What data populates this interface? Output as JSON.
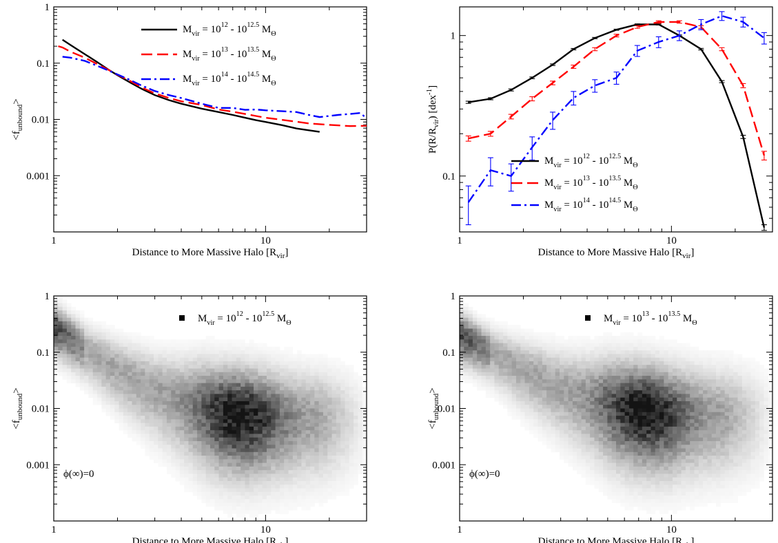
{
  "chart_data": [
    {
      "type": "line",
      "xlabel": "Distance to More Massive Halo [R",
      "xlabel_sub": "vir",
      "xlabel_end": "]",
      "ylabel": "<f",
      "ylabel_sub": "unbound",
      "ylabel_end": ">",
      "xscale": "log",
      "yscale": "log",
      "xlim": [
        1,
        30
      ],
      "ylim": [
        0.0001,
        1
      ],
      "xticks": [
        {
          "v": 1,
          "label": "1"
        },
        {
          "v": 10,
          "label": "10"
        }
      ],
      "yticks": [
        {
          "v": 1,
          "label": "1"
        },
        {
          "v": 0.1,
          "label": "0.1"
        },
        {
          "v": 0.01,
          "label": "0.01"
        },
        {
          "v": 0.001,
          "label": "0.001"
        }
      ],
      "legend_position": "top-right",
      "series": [
        {
          "name": "M_vir = 10^12 - 10^12.5 M_⊙",
          "m": "M",
          "msub": "vir",
          "t1": " = 10",
          "e1": "12",
          "t2": " - 10",
          "e2": "12.5",
          "t3": " M",
          "tsub": "Θ",
          "color": "#000000",
          "dash": "solid",
          "x": [
            1.1,
            1.2,
            1.4,
            1.6,
            1.8,
            2.0,
            2.3,
            2.6,
            3.0,
            3.5,
            4.0,
            5.0,
            6.0,
            7.0,
            8.0,
            9.0,
            10.0,
            12.0,
            14.0,
            16.0,
            18.0
          ],
          "y": [
            0.26,
            0.21,
            0.145,
            0.105,
            0.078,
            0.061,
            0.045,
            0.035,
            0.027,
            0.022,
            0.019,
            0.0155,
            0.0135,
            0.012,
            0.0107,
            0.0097,
            0.009,
            0.0079,
            0.0069,
            0.0064,
            0.006
          ]
        },
        {
          "name": "M_vir = 10^13 - 10^13.5 M_⊙",
          "m": "M",
          "msub": "vir",
          "t1": " = 10",
          "e1": "13",
          "t2": " - 10",
          "e2": "13.5",
          "t3": " M",
          "tsub": "Θ",
          "color": "#ff0000",
          "dash": "dashed",
          "x": [
            1.05,
            1.1,
            1.2,
            1.4,
            1.6,
            1.8,
            2.0,
            2.3,
            2.6,
            3.0,
            3.5,
            4.0,
            5.0,
            6.0,
            7.0,
            8.0,
            9.0,
            10.0,
            12.0,
            14.0,
            16.0,
            20.0,
            25.0,
            30.0
          ],
          "y": [
            0.2,
            0.19,
            0.16,
            0.125,
            0.097,
            0.077,
            0.062,
            0.048,
            0.037,
            0.029,
            0.024,
            0.021,
            0.018,
            0.015,
            0.0137,
            0.0125,
            0.0115,
            0.0107,
            0.0098,
            0.0091,
            0.0085,
            0.008,
            0.0076,
            0.0077
          ]
        },
        {
          "name": "M_vir = 10^14 - 10^14.5 M_⊙",
          "m": "M",
          "msub": "vir",
          "t1": " = 10",
          "e1": "14",
          "t2": " - 10",
          "e2": "14.5",
          "t3": " M",
          "tsub": "Θ",
          "color": "#0000ff",
          "dash": "dashdot",
          "x": [
            1.1,
            1.2,
            1.4,
            1.6,
            1.8,
            2.0,
            2.3,
            2.6,
            3.0,
            3.5,
            4.0,
            5.0,
            6.0,
            7.0,
            8.0,
            9.0,
            10.0,
            12.0,
            14.0,
            16.0,
            18.0,
            20.0,
            22.0,
            25.0,
            28.0,
            30.0
          ],
          "y": [
            0.13,
            0.125,
            0.11,
            0.09,
            0.075,
            0.063,
            0.05,
            0.04,
            0.032,
            0.027,
            0.024,
            0.019,
            0.016,
            0.016,
            0.0148,
            0.015,
            0.0145,
            0.014,
            0.0135,
            0.012,
            0.011,
            0.0115,
            0.012,
            0.0125,
            0.013,
            0.0105
          ]
        }
      ]
    },
    {
      "type": "line",
      "xlabel": "Distance to More Massive Halo [R",
      "xlabel_sub": "vir",
      "xlabel_end": "]",
      "ylabel": "P(R/R",
      "ylabel_sub": "vir",
      "ylabel_end": ") [dex",
      "ylabel_sup": "-1",
      "ylabel_close": "]",
      "xscale": "log",
      "yscale": "log",
      "xlim": [
        1,
        30
      ],
      "ylim": [
        0.04,
        1.6
      ],
      "xticks": [
        {
          "v": 1,
          "label": "1"
        },
        {
          "v": 10,
          "label": "10"
        }
      ],
      "yticks": [
        {
          "v": 1,
          "label": "1"
        },
        {
          "v": 0.1,
          "label": "0.1"
        }
      ],
      "legend_position": "bottom-right",
      "series": [
        {
          "name": "M_vir = 10^12 - 10^12.5 M_⊙",
          "m": "M",
          "msub": "vir",
          "t1": " = 10",
          "e1": "12",
          "t2": " - 10",
          "e2": "12.5",
          "t3": " M",
          "tsub": "Θ",
          "color": "#000000",
          "dash": "solid",
          "x": [
            1.1,
            1.4,
            1.75,
            2.2,
            2.75,
            3.45,
            4.35,
            5.5,
            6.9,
            8.7,
            10.9,
            13.8,
            17.3,
            21.8,
            27.4
          ],
          "y": [
            0.335,
            0.355,
            0.41,
            0.5,
            0.62,
            0.8,
            0.96,
            1.1,
            1.2,
            1.2,
            1.0,
            0.8,
            0.47,
            0.19,
            0.043
          ],
          "err": [
            0.006,
            0.006,
            0.007,
            0.007,
            0.008,
            0.009,
            0.01,
            0.01,
            0.011,
            0.011,
            0.01,
            0.01,
            0.008,
            0.005,
            0.002
          ]
        },
        {
          "name": "M_vir = 10^13 - 10^13.5 M_⊙",
          "m": "M",
          "msub": "vir",
          "t1": " = 10",
          "e1": "13",
          "t2": " - 10",
          "e2": "13.5",
          "t3": " M",
          "tsub": "Θ",
          "color": "#ff0000",
          "dash": "dashed",
          "x": [
            1.1,
            1.4,
            1.75,
            2.2,
            2.75,
            3.45,
            4.35,
            5.5,
            6.9,
            8.7,
            10.9,
            13.8,
            17.3,
            21.8,
            27.4
          ],
          "y": [
            0.185,
            0.2,
            0.265,
            0.355,
            0.46,
            0.6,
            0.8,
            1.0,
            1.15,
            1.25,
            1.25,
            1.15,
            0.8,
            0.44,
            0.14
          ],
          "err": [
            0.008,
            0.008,
            0.01,
            0.012,
            0.014,
            0.016,
            0.02,
            0.022,
            0.024,
            0.025,
            0.025,
            0.024,
            0.02,
            0.015,
            0.01
          ]
        },
        {
          "name": "M_vir = 10^14 - 10^14.5 M_⊙",
          "m": "M",
          "msub": "vir",
          "t1": " = 10",
          "e1": "14",
          "t2": " - 10",
          "e2": "14.5",
          "t3": " M",
          "tsub": "Θ",
          "color": "#0000ff",
          "dash": "dashdot",
          "x": [
            1.1,
            1.4,
            1.75,
            2.2,
            2.75,
            3.45,
            4.35,
            5.5,
            6.9,
            8.7,
            10.9,
            13.8,
            17.3,
            21.8,
            27.4
          ],
          "y": [
            0.065,
            0.11,
            0.1,
            0.16,
            0.25,
            0.36,
            0.44,
            0.5,
            0.78,
            0.9,
            1.0,
            1.2,
            1.38,
            1.25,
            0.96
          ],
          "err": [
            0.02,
            0.025,
            0.022,
            0.03,
            0.035,
            0.04,
            0.045,
            0.05,
            0.07,
            0.08,
            0.08,
            0.1,
            0.1,
            0.1,
            0.09
          ]
        }
      ]
    },
    {
      "type": "heatmap",
      "xlabel": "Distance to More Massive Halo [R",
      "xlabel_sub": "vir",
      "xlabel_end": "]",
      "ylabel": "<f",
      "ylabel_sub": "unbound",
      "ylabel_end": ">",
      "xscale": "log",
      "yscale": "log",
      "xlim": [
        1,
        30
      ],
      "ylim": [
        0.0001,
        1
      ],
      "xticks": [
        {
          "v": 1,
          "label": "1"
        },
        {
          "v": 10,
          "label": "10"
        }
      ],
      "yticks": [
        {
          "v": 1,
          "label": "1"
        },
        {
          "v": 0.1,
          "label": "0.1"
        },
        {
          "v": 0.01,
          "label": "0.01"
        },
        {
          "v": 0.001,
          "label": "0.001"
        }
      ],
      "legend_position": "top-right",
      "legend": {
        "m": "M",
        "msub": "vir",
        "t1": " = 10",
        "e1": "12",
        "t2": " - 10",
        "e2": "12.5",
        "t3": " M",
        "tsub": "Θ"
      },
      "annotation": "ϕ(∞)=0",
      "ridge": {
        "x": [
          1,
          1.5,
          2,
          3,
          4,
          6,
          8,
          10,
          15,
          20,
          30
        ],
        "y": [
          0.3,
          0.1,
          0.05,
          0.022,
          0.014,
          0.009,
          0.008,
          0.0075,
          0.007,
          0.007,
          0.007
        ]
      }
    },
    {
      "type": "heatmap",
      "xlabel": "Distance to More Massive Halo [R",
      "xlabel_sub": "vir",
      "xlabel_end": "]",
      "ylabel": "<f",
      "ylabel_sub": "unbound",
      "ylabel_end": ">",
      "xscale": "log",
      "yscale": "log",
      "xlim": [
        1,
        30
      ],
      "ylim": [
        0.0001,
        1
      ],
      "xticks": [
        {
          "v": 1,
          "label": "1"
        },
        {
          "v": 10,
          "label": "10"
        }
      ],
      "yticks": [
        {
          "v": 1,
          "label": "1"
        },
        {
          "v": 0.1,
          "label": "0.1"
        },
        {
          "v": 0.01,
          "label": "0.01"
        },
        {
          "v": 0.001,
          "label": "0.001"
        }
      ],
      "legend_position": "top-right",
      "legend": {
        "m": "M",
        "msub": "vir",
        "t1": " = 10",
        "e1": "13",
        "t2": " - 10",
        "e2": "13.5",
        "t3": " M",
        "tsub": "Θ"
      },
      "annotation": "ϕ(∞)=0",
      "ridge": {
        "x": [
          1,
          1.5,
          2,
          3,
          4,
          6,
          8,
          10,
          15,
          20,
          30
        ],
        "y": [
          0.22,
          0.09,
          0.05,
          0.024,
          0.016,
          0.011,
          0.0095,
          0.0085,
          0.008,
          0.008,
          0.008
        ]
      }
    }
  ]
}
